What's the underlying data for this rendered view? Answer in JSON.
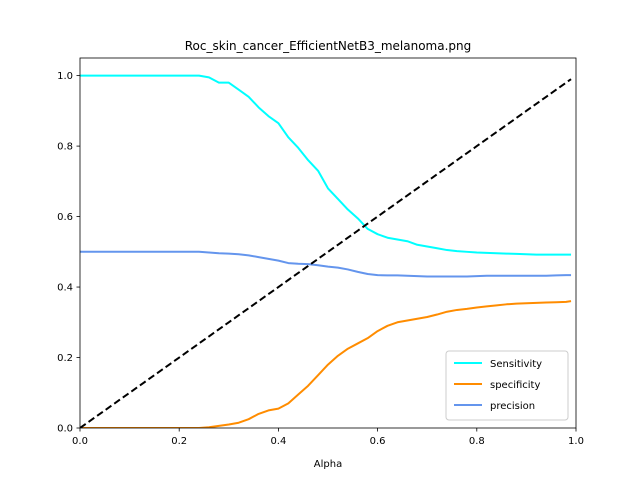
{
  "chart_data": {
    "type": "line",
    "title": "Roc_skin_cancer_EfficientNetB3_melanoma.png",
    "xlabel": "Alpha",
    "ylabel": "",
    "xlim": [
      0,
      1
    ],
    "ylim": [
      0,
      1.05
    ],
    "xticks": [
      "0.0",
      "0.2",
      "0.4",
      "0.6",
      "0.8",
      "1.0"
    ],
    "yticks": [
      "0.0",
      "0.2",
      "0.4",
      "0.6",
      "0.8",
      "1.0"
    ],
    "grid": false,
    "legend_position": "lower-right",
    "x": [
      0.0,
      0.05,
      0.1,
      0.15,
      0.2,
      0.24,
      0.26,
      0.28,
      0.3,
      0.32,
      0.34,
      0.36,
      0.38,
      0.4,
      0.42,
      0.44,
      0.46,
      0.48,
      0.5,
      0.52,
      0.54,
      0.56,
      0.58,
      0.6,
      0.62,
      0.64,
      0.66,
      0.68,
      0.7,
      0.72,
      0.74,
      0.76,
      0.78,
      0.8,
      0.82,
      0.84,
      0.86,
      0.88,
      0.9,
      0.92,
      0.94,
      0.96,
      0.98,
      0.99
    ],
    "series": [
      {
        "name": "Sensitivity",
        "color": "#00ffff",
        "dashed": false,
        "values": [
          1.0,
          1.0,
          1.0,
          1.0,
          1.0,
          1.0,
          0.995,
          0.98,
          0.98,
          0.96,
          0.94,
          0.91,
          0.885,
          0.865,
          0.825,
          0.795,
          0.76,
          0.73,
          0.68,
          0.65,
          0.62,
          0.595,
          0.565,
          0.55,
          0.54,
          0.535,
          0.53,
          0.52,
          0.515,
          0.51,
          0.505,
          0.502,
          0.5,
          0.498,
          0.497,
          0.496,
          0.495,
          0.494,
          0.493,
          0.492,
          0.492,
          0.492,
          0.492,
          0.492
        ]
      },
      {
        "name": "specificity",
        "color": "#ff8c00",
        "dashed": false,
        "values": [
          0.0,
          0.0,
          0.0,
          0.0,
          0.0,
          0.0,
          0.002,
          0.006,
          0.01,
          0.015,
          0.025,
          0.04,
          0.05,
          0.055,
          0.07,
          0.095,
          0.12,
          0.15,
          0.18,
          0.205,
          0.225,
          0.24,
          0.255,
          0.275,
          0.29,
          0.3,
          0.305,
          0.31,
          0.315,
          0.322,
          0.33,
          0.335,
          0.338,
          0.342,
          0.345,
          0.348,
          0.351,
          0.353,
          0.354,
          0.355,
          0.356,
          0.357,
          0.358,
          0.36
        ]
      },
      {
        "name": "precision",
        "color": "#6495ed",
        "dashed": false,
        "values": [
          0.5,
          0.5,
          0.5,
          0.5,
          0.5,
          0.5,
          0.498,
          0.496,
          0.495,
          0.493,
          0.49,
          0.485,
          0.48,
          0.475,
          0.468,
          0.466,
          0.465,
          0.462,
          0.458,
          0.455,
          0.45,
          0.443,
          0.437,
          0.434,
          0.433,
          0.433,
          0.432,
          0.431,
          0.43,
          0.43,
          0.43,
          0.43,
          0.43,
          0.431,
          0.432,
          0.432,
          0.432,
          0.432,
          0.432,
          0.432,
          0.432,
          0.433,
          0.434,
          0.434
        ]
      },
      {
        "name": "",
        "color": "#000000",
        "dashed": true,
        "values": [
          0.0,
          0.05,
          0.1,
          0.15,
          0.2,
          0.24,
          0.26,
          0.28,
          0.3,
          0.32,
          0.34,
          0.36,
          0.38,
          0.4,
          0.42,
          0.44,
          0.46,
          0.48,
          0.5,
          0.52,
          0.54,
          0.56,
          0.58,
          0.6,
          0.62,
          0.64,
          0.66,
          0.68,
          0.7,
          0.72,
          0.74,
          0.76,
          0.78,
          0.8,
          0.82,
          0.84,
          0.86,
          0.88,
          0.9,
          0.92,
          0.94,
          0.96,
          0.98,
          0.99
        ]
      }
    ]
  }
}
